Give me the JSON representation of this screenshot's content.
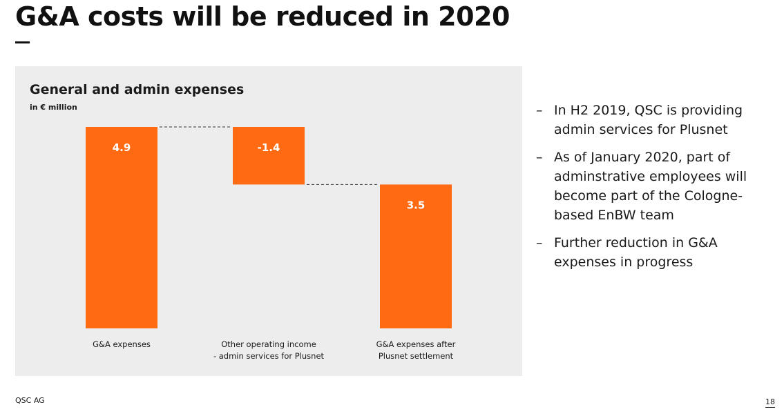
{
  "slide": {
    "title": "G&A costs will be reduced in 2020"
  },
  "chart_data": {
    "type": "bar",
    "subtype": "waterfall",
    "title": "General and admin expenses",
    "subtitle": "in € million",
    "categories": [
      [
        "G&A expenses"
      ],
      [
        "Other operating income",
        "- admin services for Plusnet"
      ],
      [
        "G&A expenses after",
        "Plusnet settlement"
      ]
    ],
    "values": [
      4.9,
      -1.4,
      3.5
    ],
    "value_labels": [
      "4.9",
      "-1.4",
      "3.5"
    ],
    "bar_kinds": [
      "total",
      "delta",
      "total"
    ],
    "ylim": [
      0,
      4.9
    ],
    "bar_color": "#ff6a13",
    "connector_color": "#555555"
  },
  "bullets": [
    {
      "dash": "–",
      "text": "In H2 2019, QSC is providing admin services for Plusnet"
    },
    {
      "dash": "–",
      "text": "As of January 2020, part of adminstrative employees will become part of the Cologne-based EnBW team"
    },
    {
      "dash": "–",
      "text": "Further reduction in G&A expenses in progress"
    }
  ],
  "footer": {
    "company": "QSC AG",
    "page_number": "18"
  }
}
